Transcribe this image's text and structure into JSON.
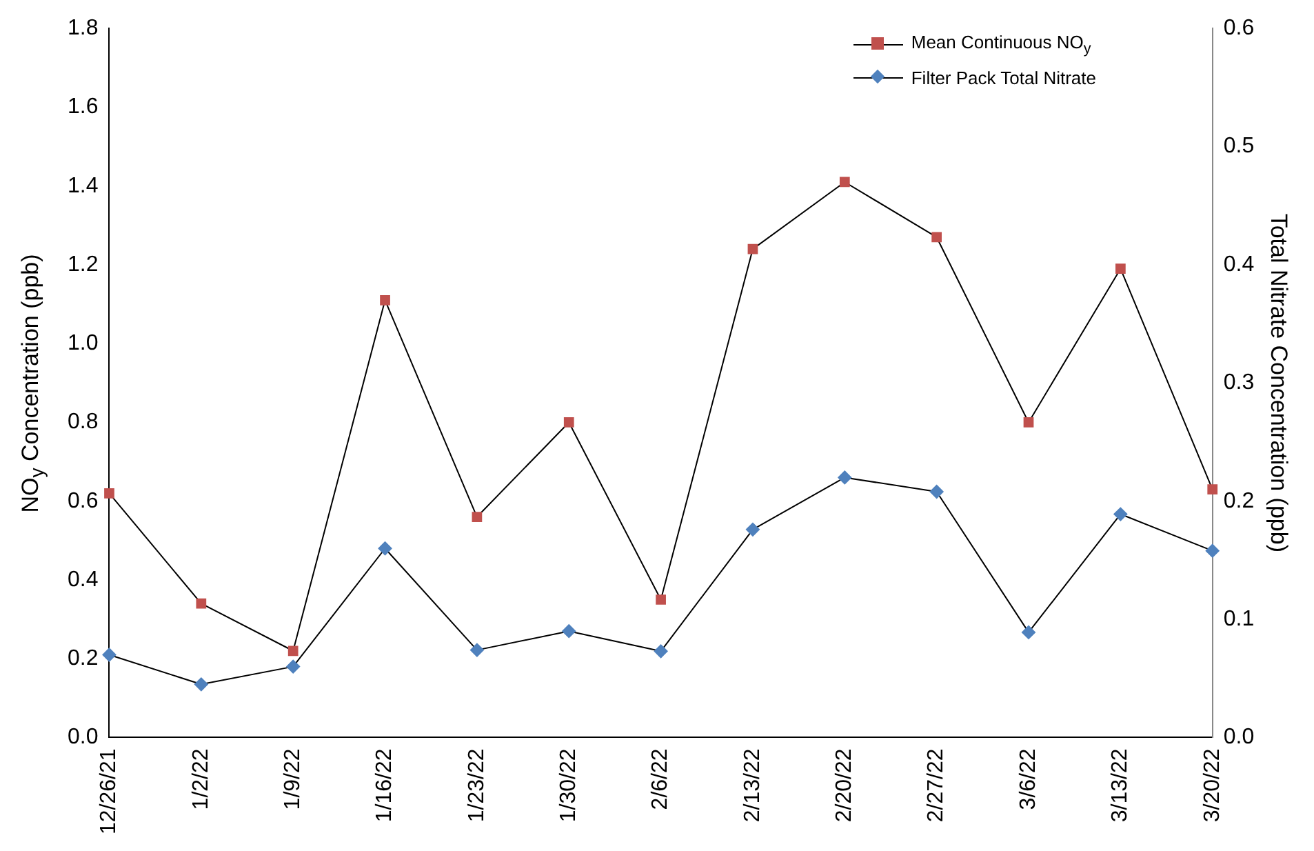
{
  "chart_data": {
    "type": "line",
    "ylabel": "NO$_{y}$ Concentration (ppb)",
    "y2label": "Total Nitrate Concentration (ppb)",
    "categories": [
      "12/26/21",
      "1/2/22",
      "1/9/22",
      "1/16/22",
      "1/23/22",
      "1/30/22",
      "2/6/22",
      "2/13/22",
      "2/20/22",
      "2/27/22",
      "3/6/22",
      "3/13/22",
      "3/20/22"
    ],
    "series": [
      {
        "name": "Mean Continuous NO$_{y}$",
        "color": "#c0504d",
        "marker": "square",
        "values": [
          0.62,
          0.34,
          0.22,
          1.11,
          0.56,
          0.8,
          0.35,
          1.24,
          1.41,
          1.27,
          0.8,
          1.19,
          0.63
        ]
      },
      {
        "name": "Filter Pack Total Nitrate",
        "color": "#4f81bd",
        "marker": "diamond",
        "axis": "y2",
        "values": [
          0.07,
          0.045,
          0.06,
          0.16,
          0.074,
          0.09,
          0.073,
          0.176,
          0.22,
          0.208,
          0.089,
          0.189,
          0.158
        ]
      }
    ],
    "ylim": [
      0,
      1.8
    ],
    "yticks": [
      {
        "value": 0,
        "label": "0.0"
      },
      {
        "value": 0.2,
        "label": "0.2"
      },
      {
        "value": 0.4,
        "label": "0.4"
      },
      {
        "value": 0.6,
        "label": "0.6"
      },
      {
        "value": 0.8,
        "label": "0.8"
      },
      {
        "value": 1,
        "label": "1.0"
      },
      {
        "value": 1.2,
        "label": "1.2"
      },
      {
        "value": 1.4,
        "label": "1.4"
      },
      {
        "value": 1.6,
        "label": "1.6"
      },
      {
        "value": 1.8,
        "label": "1.8"
      }
    ],
    "y2lim": [
      0,
      0.6
    ],
    "y2ticks": [
      {
        "value": 0,
        "label": "0.0"
      },
      {
        "value": 0.1,
        "label": "0.1"
      },
      {
        "value": 0.2,
        "label": "0.2"
      },
      {
        "value": 0.3,
        "label": "0.3"
      },
      {
        "value": 0.4,
        "label": "0.4"
      },
      {
        "value": 0.5,
        "label": "0.5"
      },
      {
        "value": 0.6,
        "label": "0.6"
      }
    ],
    "grid": false,
    "legend": "top right"
  }
}
